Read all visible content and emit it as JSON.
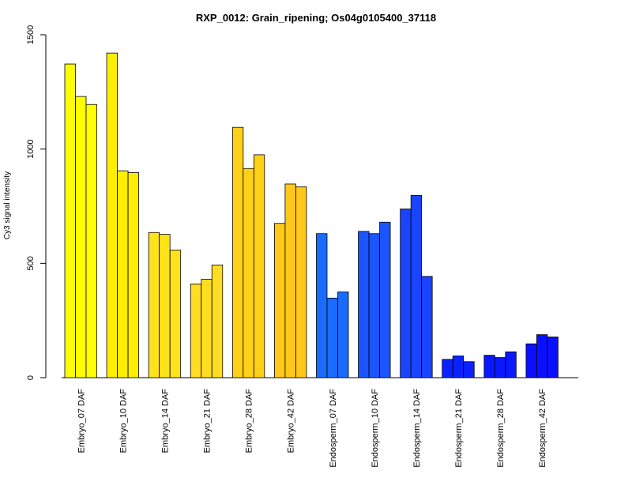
{
  "chart_data": {
    "type": "bar",
    "title": "RXP_0012: Grain_ripening; Os04g0105400_37118",
    "xlabel": "",
    "ylabel": "Cy3 signal intensity",
    "ylim": [
      0,
      1500
    ],
    "yticks": [
      0,
      500,
      1000,
      1500
    ],
    "grid": false,
    "categories": [
      "Embryo_07 DAF",
      "Embryo_10 DAF",
      "Embryo_14 DAF",
      "Embryo_21 DAF",
      "Embryo_28 DAF",
      "Embryo_42 DAF",
      "Endosperm_07 DAF",
      "Endosperm_10 DAF",
      "Endosperm_14 DAF",
      "Endosperm_21 DAF",
      "Endosperm_28 DAF",
      "Endosperm_42 DAF"
    ],
    "group_colors": [
      "#ffff00",
      "#ffee00",
      "#ffe31a",
      "#ffdd22",
      "#ffd01a",
      "#ffc81a",
      "#1a6cff",
      "#1a55ff",
      "#1a44ff",
      "#0a22ff",
      "#0a18ff",
      "#0a10ff"
    ],
    "values": [
      [
        1372,
        1230,
        1195
      ],
      [
        1420,
        905,
        897
      ],
      [
        635,
        627,
        558
      ],
      [
        410,
        430,
        493
      ],
      [
        1095,
        915,
        975
      ],
      [
        675,
        847,
        835
      ],
      [
        630,
        348,
        375
      ],
      [
        640,
        630,
        680
      ],
      [
        738,
        797,
        443
      ],
      [
        80,
        95,
        70
      ],
      [
        98,
        88,
        113
      ],
      [
        148,
        188,
        178
      ]
    ]
  }
}
